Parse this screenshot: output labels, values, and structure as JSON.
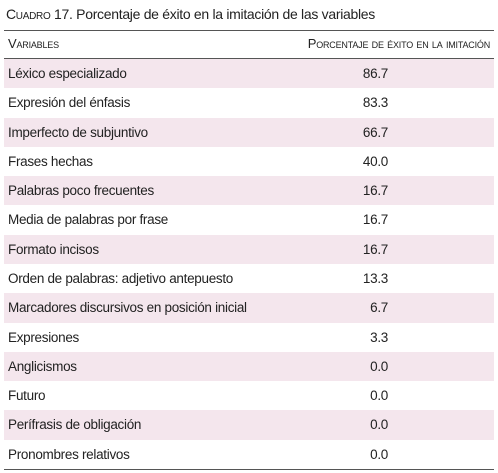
{
  "caption": {
    "label": "Cuadro 17.",
    "text": "Porcentaje de éxito en la imitación de las variables"
  },
  "table": {
    "headers": [
      "Variables",
      "Porcentaje de éxito en la imitación"
    ],
    "rows": [
      [
        "Léxico especializado",
        "86.7"
      ],
      [
        "Expresión del énfasis",
        "83.3"
      ],
      [
        "Imperfecto de subjuntivo",
        "66.7"
      ],
      [
        "Frases hechas",
        "40.0"
      ],
      [
        "Palabras poco frecuentes",
        "16.7"
      ],
      [
        "Media de palabras por frase",
        "16.7"
      ],
      [
        "Formato incisos",
        "16.7"
      ],
      [
        "Orden de palabras: adjetivo antepuesto",
        "13.3"
      ],
      [
        "Marcadores discursivos en posición inicial",
        "6.7"
      ],
      [
        "Expresiones",
        "3.3"
      ],
      [
        "Anglicismos",
        "0.0"
      ],
      [
        "Futuro",
        "0.0"
      ],
      [
        "Perífrasis de obligación",
        "0.0"
      ],
      [
        "Pronombres relativos",
        "0.0"
      ]
    ]
  }
}
